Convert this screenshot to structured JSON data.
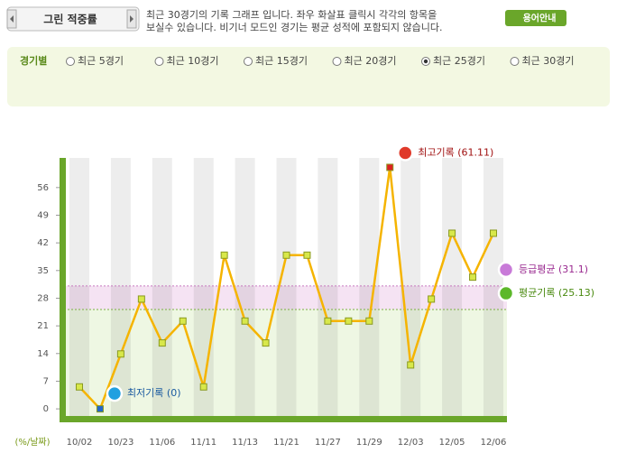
{
  "header": {
    "title": "그린 적중률",
    "description": [
      "최근 30경기의 기록 그래프 입니다. 좌우 화살표 클릭시 각각의 항목을",
      "보실수 있습니다. 비기너 모드인 경기는 평균 성적에 포함되지 않습니다."
    ],
    "help": "용어안내"
  },
  "filter": {
    "label": "경기별",
    "options": [
      "최근 5경기",
      "최근 10경기",
      "최근 15경기",
      "최근 20경기",
      "최근 25경기",
      "최근 30경기"
    ],
    "selected": 4
  },
  "chart_data": {
    "type": "line",
    "x_label": "(%/날짜)",
    "categories": [
      "10/02",
      null,
      "10/23",
      null,
      "11/06",
      null,
      "11/11",
      null,
      "11/13",
      null,
      "11/21",
      null,
      "11/27",
      null,
      "11/29",
      null,
      "12/03",
      null,
      "12/05",
      null,
      "12/06"
    ],
    "values": [
      5.56,
      0,
      13.89,
      27.78,
      16.67,
      22.22,
      5.56,
      38.89,
      22.22,
      16.67,
      38.89,
      38.89,
      22.22,
      22.22,
      22.22,
      61.11,
      11.11,
      27.78,
      44.44,
      33.33,
      44.44
    ],
    "color": "#f5b400",
    "ylim": [
      -3.4,
      63.5
    ],
    "yticks": [
      0,
      7,
      14,
      21,
      28,
      35,
      42,
      49,
      56
    ],
    "annotations": {
      "max": {
        "label": "최고기록 (61.11)",
        "value": 61.11
      },
      "min": {
        "label": "최저기록 (0)",
        "value": 0
      },
      "grade_avg": {
        "label": "등급평균 (31.1)",
        "value": 31.1
      },
      "avg": {
        "label": "평균기록 (25.13)",
        "value": 25.13
      }
    }
  }
}
